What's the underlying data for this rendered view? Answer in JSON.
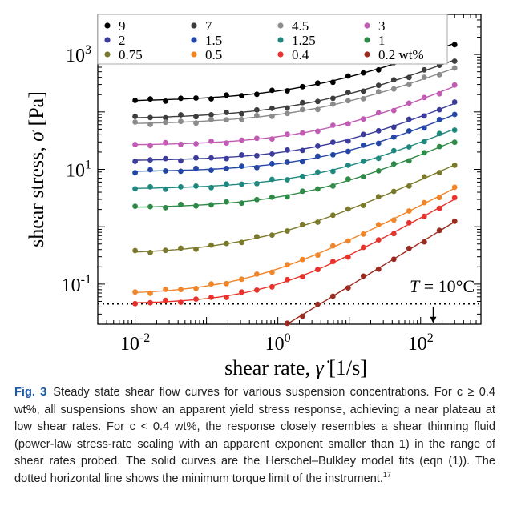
{
  "chart_data": {
    "type": "scatter",
    "xlabel_main": "shear rate,",
    "xlabel_symbol": "γ̇",
    "xlabel_unit": "[1/s]",
    "ylabel_main": "shear stress,",
    "ylabel_symbol": "σ",
    "ylabel_unit": "[Pa]",
    "xscale": "log",
    "yscale": "log",
    "xlim": [
      0.003,
      700
    ],
    "ylim": [
      0.02,
      5000
    ],
    "xticks": [
      {
        "value": 0.01,
        "base": "10",
        "exp": "-2"
      },
      {
        "value": 1,
        "base": "10",
        "exp": "0"
      },
      {
        "value": 100,
        "base": "10",
        "exp": "2"
      }
    ],
    "yticks": [
      {
        "value": 0.1,
        "base": "10",
        "exp": "-1"
      },
      {
        "value": 10,
        "base": "10",
        "exp": "1"
      },
      {
        "value": 1000,
        "base": "10",
        "exp": "3"
      }
    ],
    "annotation": {
      "var": "T",
      "text": " = 10°C"
    },
    "torque_limit": 0.045,
    "legend_unit": "wt%",
    "legend_position": "top-left",
    "series": [
      {
        "name": "9",
        "color": "#000000",
        "plateau": 150,
        "K": 82,
        "n": 0.5
      },
      {
        "name": "7",
        "color": "#3d3d3d",
        "plateau": 75,
        "K": 42,
        "n": 0.5
      },
      {
        "name": "4.5",
        "color": "#8c8c8c",
        "plateau": 60,
        "K": 30,
        "n": 0.5
      },
      {
        "name": "3",
        "color": "#c15bb3",
        "plateau": 26,
        "K": 11,
        "n": 0.55
      },
      {
        "name": "2",
        "color": "#3c3c9c",
        "plateau": 14,
        "K": 5.5,
        "n": 0.55
      },
      {
        "name": "1.5",
        "color": "#2446a6",
        "plateau": 9,
        "K": 3.5,
        "n": 0.55
      },
      {
        "name": "1.25",
        "color": "#20897f",
        "plateau": 4.5,
        "K": 2.0,
        "n": 0.55
      },
      {
        "name": "1",
        "color": "#2e8a47",
        "plateau": 2.1,
        "K": 1.2,
        "n": 0.56
      },
      {
        "name": "0.75",
        "color": "#7a7a2a",
        "plateau": 0.33,
        "K": 0.45,
        "n": 0.57
      },
      {
        "name": "0.5",
        "color": "#f1852a",
        "plateau": 0.065,
        "K": 0.12,
        "n": 0.64
      },
      {
        "name": "0.4",
        "color": "#e8322b",
        "plateau": 0.045,
        "K": 0.055,
        "n": 0.7
      },
      {
        "name": "0.2",
        "color": "#9b2a1f",
        "plateau": 0.0,
        "K": 0.016,
        "n": 0.76
      }
    ]
  },
  "caption": {
    "label": "Fig. 3",
    "text": "Steady state shear flow curves for various suspension concentrations. For c ≥ 0.4 wt%, all suspensions show an apparent yield stress response, achieving a near plateau at low shear rates. For c < 0.4 wt%, the response closely resembles a shear thinning fluid (power-law stress-rate scaling with an apparent exponent smaller than 1) in the range of shear rates probed. The solid curves are the Herschel–Bulkley model fits (eqn (1)). The dotted horizontal line shows the minimum torque limit of the instrument.",
    "ref": "17"
  }
}
